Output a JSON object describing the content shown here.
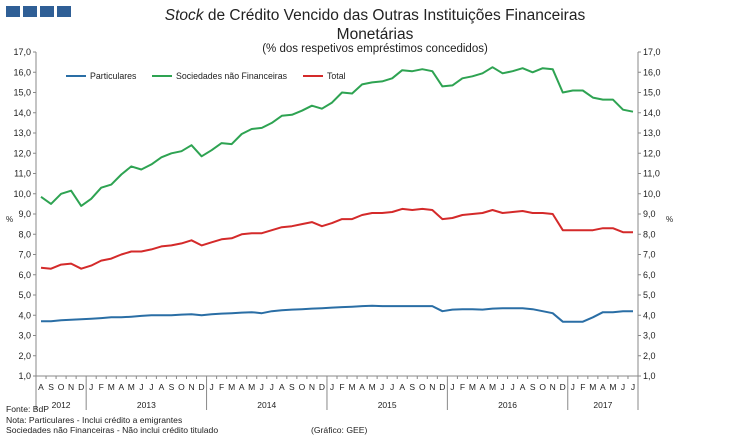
{
  "header": {
    "logo_icon": "bdp-logo-icon",
    "title_italic": "Stock",
    "title_rest": " de Crédito Vencido das Outras Instituições Financeiras",
    "title_line2": "Monetárias",
    "subtitle": "(% dos respetivos empréstimos concedidos)"
  },
  "footer": {
    "source": "Fonte: BdP",
    "note1": "Nota: Particulares - Inclui crédito a emigrantes",
    "note2": "Sociedades não Financeiras - Não inclui crédito titulado",
    "credit": "(Gráfico: GEE)"
  },
  "chart_data": {
    "type": "line",
    "title": "Stock de Crédito Vencido das Outras Instituições Financeiras Monetárias",
    "subtitle": "(% dos respetivos empréstimos concedidos)",
    "ylabel_left": "%",
    "ylabel_right": "%",
    "ylim": [
      1.0,
      17.0
    ],
    "ytick_step": 1.0,
    "ytick_labels": [
      "1,0",
      "2,0",
      "3,0",
      "4,0",
      "5,0",
      "6,0",
      "7,0",
      "8,0",
      "9,0",
      "10,0",
      "11,0",
      "12,0",
      "13,0",
      "14,0",
      "15,0",
      "16,0",
      "17,0"
    ],
    "grid": false,
    "legend_position": "top-left",
    "x": [
      "A",
      "S",
      "O",
      "N",
      "D",
      "J",
      "F",
      "M",
      "A",
      "M",
      "J",
      "J",
      "A",
      "S",
      "O",
      "N",
      "D",
      "J",
      "F",
      "M",
      "A",
      "M",
      "J",
      "J",
      "A",
      "S",
      "O",
      "N",
      "D",
      "J",
      "F",
      "M",
      "A",
      "M",
      "J",
      "J",
      "A",
      "S",
      "O",
      "N",
      "D",
      "J",
      "F",
      "M",
      "A",
      "M",
      "J",
      "J",
      "A",
      "S",
      "O",
      "N",
      "D",
      "J",
      "F",
      "M",
      "A",
      "M",
      "J",
      "J"
    ],
    "years": [
      {
        "label": "2012",
        "start": 0,
        "end": 4
      },
      {
        "label": "2013",
        "start": 5,
        "end": 16
      },
      {
        "label": "2014",
        "start": 17,
        "end": 28
      },
      {
        "label": "2015",
        "start": 29,
        "end": 40
      },
      {
        "label": "2016",
        "start": 41,
        "end": 52
      },
      {
        "label": "2017",
        "start": 53,
        "end": 59
      }
    ],
    "series": [
      {
        "name": "Particulares",
        "color": "#2a6ea5",
        "values": [
          3.7,
          3.7,
          3.75,
          3.78,
          3.8,
          3.83,
          3.86,
          3.9,
          3.9,
          3.93,
          3.97,
          4.0,
          4.0,
          4.0,
          4.03,
          4.05,
          4.0,
          4.05,
          4.08,
          4.1,
          4.13,
          4.15,
          4.1,
          4.2,
          4.25,
          4.28,
          4.3,
          4.33,
          4.35,
          4.38,
          4.4,
          4.42,
          4.45,
          4.47,
          4.45,
          4.45,
          4.45,
          4.45,
          4.45,
          4.45,
          4.2,
          4.28,
          4.3,
          4.3,
          4.28,
          4.33,
          4.35,
          4.35,
          4.35,
          4.3,
          4.2,
          4.1,
          3.68,
          3.68,
          3.68,
          3.9,
          4.15,
          4.15,
          4.2,
          4.2
        ]
      },
      {
        "name": "Sociedades não Financeiras",
        "color": "#2ea352",
        "values": [
          9.85,
          9.5,
          10.0,
          10.15,
          9.4,
          9.75,
          10.3,
          10.45,
          10.95,
          11.35,
          11.2,
          11.45,
          11.8,
          12.0,
          12.1,
          12.4,
          11.85,
          12.15,
          12.5,
          12.45,
          12.95,
          13.2,
          13.25,
          13.5,
          13.85,
          13.9,
          14.1,
          14.35,
          14.2,
          14.5,
          15.0,
          14.95,
          15.4,
          15.5,
          15.55,
          15.7,
          16.1,
          16.05,
          16.15,
          16.05,
          15.3,
          15.35,
          15.7,
          15.8,
          15.95,
          16.25,
          15.95,
          16.05,
          16.2,
          16.0,
          16.2,
          16.15,
          15.0,
          15.1,
          15.1,
          14.75,
          14.65,
          14.65,
          14.15,
          14.05
        ]
      },
      {
        "name": "Total",
        "color": "#d42a2a",
        "values": [
          6.35,
          6.3,
          6.5,
          6.55,
          6.3,
          6.45,
          6.7,
          6.8,
          7.0,
          7.15,
          7.15,
          7.25,
          7.4,
          7.45,
          7.55,
          7.7,
          7.45,
          7.6,
          7.75,
          7.8,
          8.0,
          8.05,
          8.05,
          8.2,
          8.35,
          8.4,
          8.5,
          8.6,
          8.4,
          8.55,
          8.75,
          8.75,
          8.95,
          9.05,
          9.05,
          9.1,
          9.25,
          9.2,
          9.25,
          9.2,
          8.75,
          8.8,
          8.95,
          9.0,
          9.05,
          9.2,
          9.05,
          9.1,
          9.15,
          9.05,
          9.05,
          9.0,
          8.2,
          8.2,
          8.2,
          8.2,
          8.3,
          8.3,
          8.1,
          8.1
        ]
      }
    ]
  }
}
